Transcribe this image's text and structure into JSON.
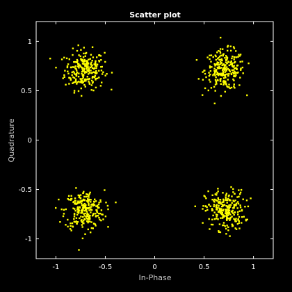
{
  "chart_data": {
    "type": "scatter",
    "title": "Scatter plot",
    "xlabel": "In-Phase",
    "ylabel": "Quadrature",
    "xlim": [
      -1.2,
      1.2
    ],
    "ylim": [
      -1.2,
      1.2
    ],
    "xticks": [
      -1,
      -0.5,
      0,
      0.5,
      1
    ],
    "yticks": [
      -1,
      -0.5,
      0,
      0.5,
      1
    ],
    "grid": false,
    "colors": {
      "background": "#000000",
      "axes": "#ffffff",
      "marker": "#ffff00"
    },
    "series": [
      {
        "clusters": [
          {
            "center": [
              -0.71,
              0.71
            ],
            "spread": 0.1,
            "count": 250
          },
          {
            "center": [
              0.71,
              0.71
            ],
            "spread": 0.1,
            "count": 250
          },
          {
            "center": [
              -0.71,
              -0.71
            ],
            "spread": 0.1,
            "count": 250
          },
          {
            "center": [
              0.71,
              -0.71
            ],
            "spread": 0.1,
            "count": 250
          }
        ]
      }
    ]
  }
}
